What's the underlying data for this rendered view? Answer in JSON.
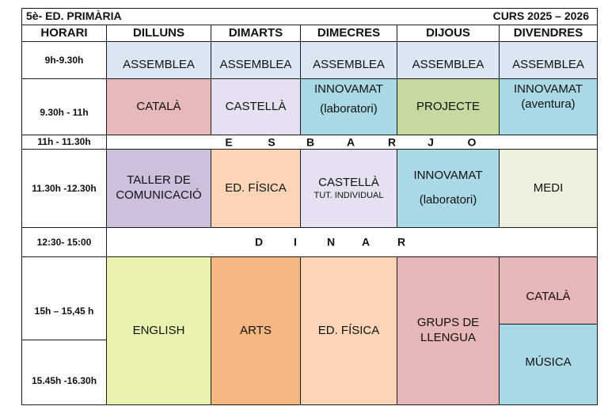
{
  "header": {
    "left": "5è- ED. PRIMÀRIA",
    "right": "CURS 2025 – 2026"
  },
  "columns": [
    "HORARI",
    "DILLUNS",
    "DIMARTS",
    "DIMECRES",
    "DIJOUS",
    "DIVENDRES"
  ],
  "times": {
    "t1": "9h-9.30h",
    "t2": "9.30h - 11h",
    "t3": "11h - 11.30h",
    "t4": "11.30h -12.30h",
    "t5": "12:30- 15:00",
    "t6": "15h – 15,45 h",
    "t7": "15.45h -16.30h"
  },
  "assemblea": {
    "mon": "ASSEMBLEA",
    "tue": "ASSEMBLEA",
    "wed": "ASSEMBLEA",
    "thu": "ASSEMBLEA",
    "fri": "ASSEMBLEA"
  },
  "slot2": {
    "mon": "CATALÀ",
    "tue": "CASTELLÀ",
    "wed_l1": "INNOVAMAT",
    "wed_l2": "(laboratori)",
    "thu": "PROJECTE",
    "fri_l1": "INNOVAMAT",
    "fri_l2": "(aventura)"
  },
  "esbarjo": [
    "E",
    "S",
    "B",
    "A",
    "R",
    "J",
    "O"
  ],
  "slot4": {
    "mon_l1": "TALLER DE",
    "mon_l2": "COMUNICACIÓ",
    "tue": "ED. FÍSICA",
    "wed_l1": "CASTELLÀ",
    "wed_l2": "TUT. INDIVIDUAL",
    "thu_l1": "INNOVAMAT",
    "thu_l2": "(laboratori)",
    "fri": "MEDI"
  },
  "dinar": [
    "D",
    "I",
    "N",
    "A",
    "R"
  ],
  "afternoon": {
    "mon": "ENGLISH",
    "tue": "ARTS",
    "wed": "ED. FÍSICA",
    "thu_l1": "GRUPS DE",
    "thu_l2": "LLENGUA",
    "fri1": "CATALÀ",
    "fri2": "MÚSICA"
  },
  "colors": {
    "assemblea": "#dae6f2",
    "catala": "#e7b9ba",
    "castella": "#e6e0f0",
    "innovamat": "#a9d9e4",
    "projecte": "#c6d99e",
    "taller": "#ccc0dc",
    "edfisica": "#fbd5b5",
    "medi": "#ebf1dc",
    "english": "#ebf2b0",
    "arts": "#f7b780",
    "musica": "#a9d9e4"
  }
}
